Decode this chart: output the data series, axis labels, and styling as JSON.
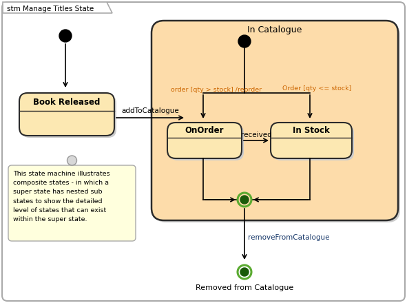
{
  "title": "stm Manage Titles State",
  "bg_color": "#ffffff",
  "state_fill": "#fce8b2",
  "state_border": "#2b2b2b",
  "composite_fill": "#fddcaa",
  "composite_border": "#2b2b2b",
  "note_fill": "#ffffdd",
  "note_border": "#999999",
  "shadow_color": "#bbbbbb",
  "label_color": "#1a3a6b",
  "transition_color": "#cc6600",
  "book_released_label": "Book Released",
  "in_catalogue_label": "In Catalogue",
  "on_order_label": "OnOrder",
  "in_stock_label": "In Stock",
  "removed_label": "Removed from Catalogue",
  "add_to_catalogue": "addToCatalogue",
  "received_label": "received",
  "order_reorder": "order [qty > stock] /reorder",
  "order_stock": "Order [qty <= stock]",
  "remove_from_catalogue": "removeFromCatalogue",
  "note_text": "This state machine illustrates\ncomposite states - in which a\nsuper state has nested sub\nstates to show the detailed\nlevel of states that can exist\nwithin the super state."
}
